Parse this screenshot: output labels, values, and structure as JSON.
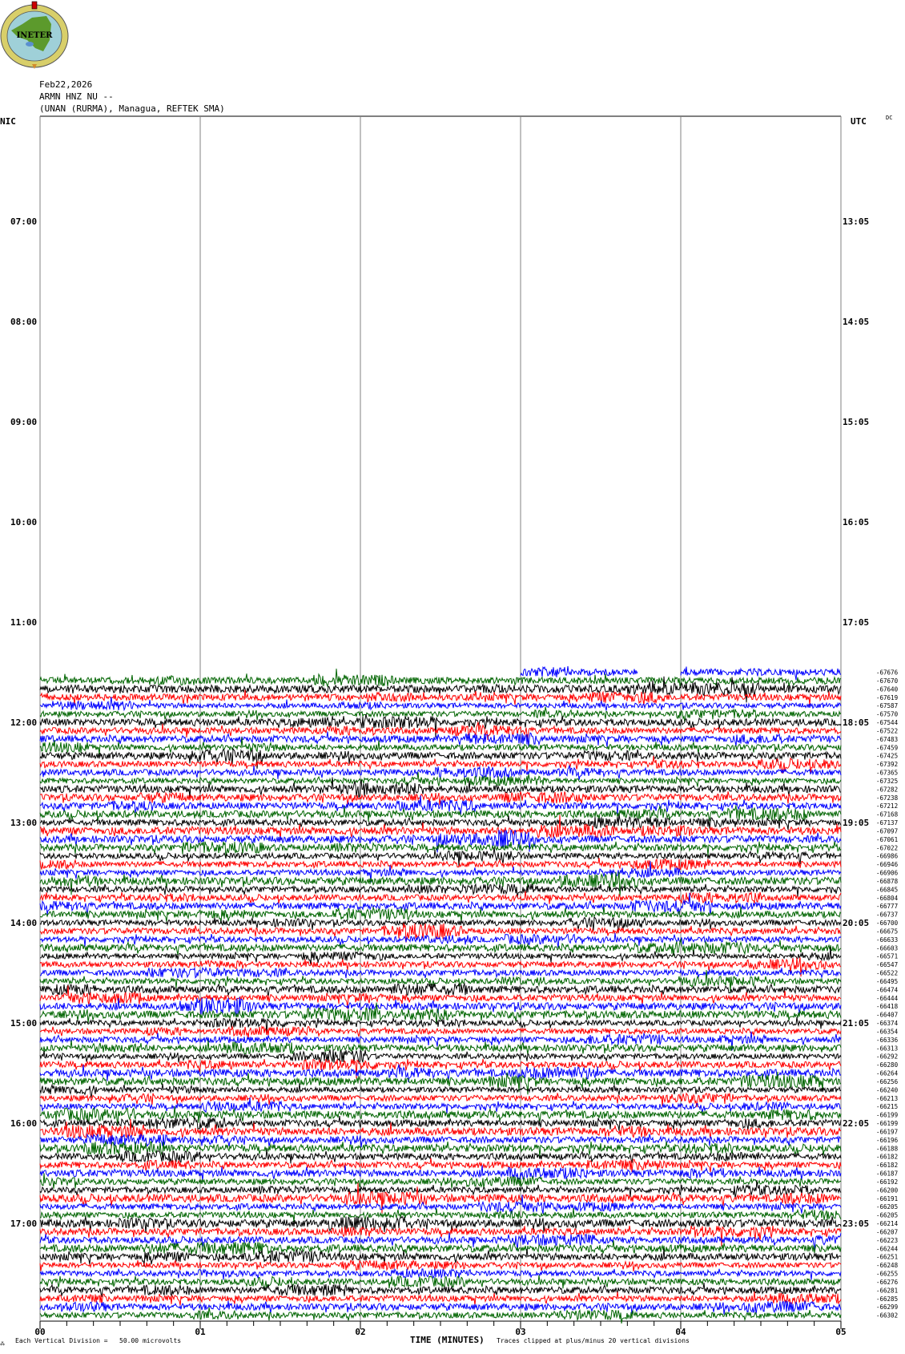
{
  "header": {
    "date": "Feb22,2026",
    "channel": "ARMN HNZ NU --",
    "station": "(UNAN (RURMA), Managua, REFTEK SMA)",
    "logo_text": "INETER"
  },
  "labels": {
    "left_zone": "NIC",
    "right_zone": "UTC",
    "dc": "DC",
    "scale_note": "Each Vertical Division =   50.00 microvolts",
    "clip_note": "Traces clipped at plus/minus 20 vertical divisions"
  },
  "chart_data": {
    "type": "line",
    "subtype": "helicorder",
    "xlabel": "TIME (MINUTES)",
    "xlim": [
      0,
      5
    ],
    "x_ticks": [
      "00",
      "01",
      "02",
      "03",
      "04",
      "05"
    ],
    "left_hour_labels": [
      "07:00",
      "08:00",
      "09:00",
      "10:00",
      "11:00",
      "12:00",
      "13:00",
      "14:00",
      "15:00",
      "16:00",
      "17:00"
    ],
    "right_hour_labels": [
      "13:05",
      "14:05",
      "15:05",
      "16:05",
      "17:05",
      "18:05",
      "19:05",
      "20:05",
      "21:05",
      "22:05",
      "23:05"
    ],
    "row_minutes": 5,
    "first_trace_row_utc": "17:35",
    "first_trace_segments_minutes": [
      [
        3.0,
        3.73
      ],
      [
        4.0,
        5.0
      ]
    ],
    "trace_colors": [
      "#0000ff",
      "#006400",
      "#000000",
      "#ff0000"
    ],
    "gridline_color": "#808080",
    "row_offsets": [
      -67676,
      -67670,
      -67640,
      -67619,
      -67587,
      -67570,
      -67544,
      -67522,
      -67483,
      -67459,
      -67425,
      -67392,
      -67365,
      -67325,
      -67282,
      -67238,
      -67212,
      -67168,
      -67137,
      -67097,
      -67061,
      -67022,
      -66986,
      -66946,
      -66906,
      -66878,
      -66845,
      -66804,
      -66777,
      -66737,
      -66700,
      -66675,
      -66633,
      -66603,
      -66571,
      -66547,
      -66522,
      -66495,
      -66474,
      -66444,
      -66418,
      -66407,
      -66374,
      -66354,
      -66336,
      -66313,
      -66292,
      -66280,
      -66264,
      -66256,
      -66240,
      -66213,
      -66215,
      -66199,
      -66199,
      -66197,
      -66196,
      -66188,
      -66182,
      -66182,
      -66187,
      -66192,
      -66200,
      -66191,
      -66205,
      -66205,
      -66214,
      -66207,
      -66223,
      -66244,
      -66251,
      -66248,
      -66255,
      -66276,
      -66281,
      -66285,
      -66299,
      -66302
    ]
  }
}
